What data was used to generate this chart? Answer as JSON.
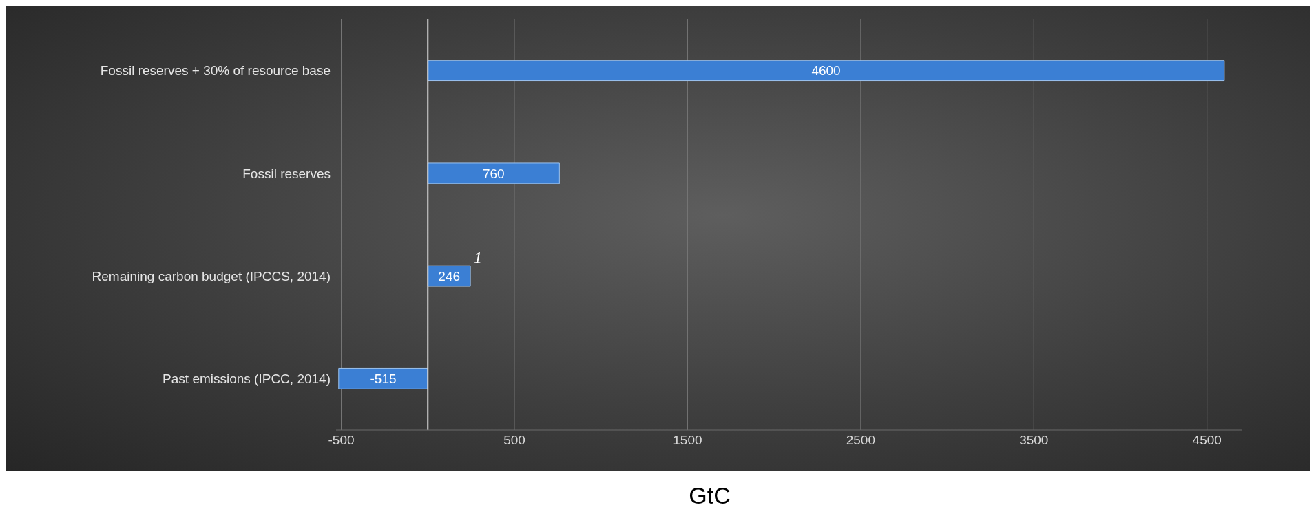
{
  "chart_data": {
    "type": "bar",
    "orientation": "horizontal",
    "xlabel": "GtC",
    "categories": [
      "Fossil reserves + 30% of resource base",
      "Fossil reserves",
      "Remaining carbon budget (IPCCS, 2014)",
      "Past emissions (IPCC, 2014)"
    ],
    "values": [
      4600,
      760,
      246,
      -515
    ],
    "color": "#3b7fd4",
    "data_labels": true,
    "xlim": [
      -530,
      4700
    ],
    "xticks": [
      -500,
      500,
      1500,
      2500,
      3500,
      4500
    ],
    "grid": "x",
    "ref_lines": [
      {
        "axis": "x",
        "value": 0,
        "color": "#d9d9d9"
      }
    ],
    "annotations": [
      {
        "text": "1",
        "x": 246,
        "y": "Remaining carbon budget (IPCCS, 2014)"
      }
    ]
  }
}
